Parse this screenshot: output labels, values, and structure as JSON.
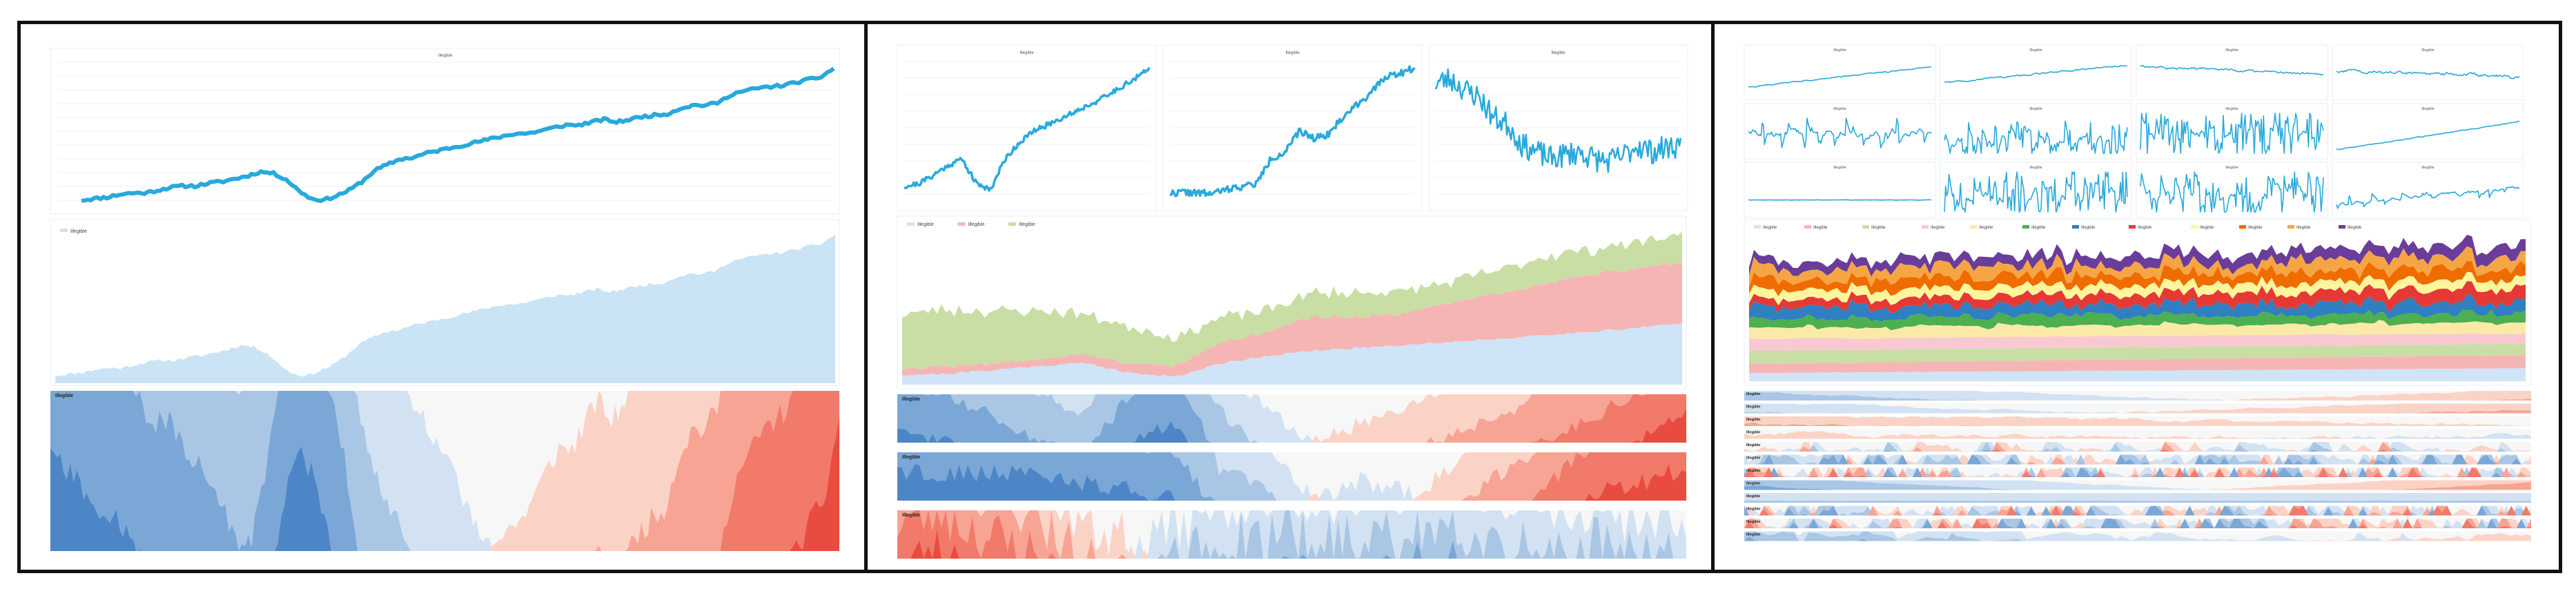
{
  "panel_1": {
    "line_chart": {
      "title": "Illegible"
    },
    "area_legend": [
      "Illegible"
    ],
    "horizon_label": "Illegible"
  },
  "panel_2": {
    "small_multiples": [
      {
        "title": "Illegible"
      },
      {
        "title": "Illegible"
      },
      {
        "title": "Illegible"
      }
    ],
    "legend": [
      "Illegible",
      "Illegible",
      "Illegible"
    ],
    "horizon_labels": [
      "Illegible",
      "Illegible",
      "Illegible"
    ]
  },
  "panel_3": {
    "small_multiples": [
      {
        "title": "Illegible"
      },
      {
        "title": "Illegible"
      },
      {
        "title": "Illegible"
      },
      {
        "title": "Illegible"
      },
      {
        "title": "Illegible"
      },
      {
        "title": "Illegible"
      },
      {
        "title": "Illegible"
      },
      {
        "title": "Illegible"
      },
      {
        "title": "Illegible"
      },
      {
        "title": "Illegible"
      },
      {
        "title": "Illegible"
      },
      {
        "title": "Illegible"
      }
    ],
    "legend": [
      "Illegible",
      "Illegible",
      "Illegible",
      "Illegible",
      "Illegible",
      "Illegible",
      "Illegible",
      "Illegible",
      "Illegible",
      "Illegible",
      "Illegible",
      "Illegible"
    ],
    "horizon_labels": [
      "Illegible",
      "Illegible",
      "Illegible",
      "Illegible",
      "Illegible",
      "Illegible",
      "Illegible",
      "Illegible",
      "Illegible",
      "Illegible",
      "Illegible",
      "Illegible"
    ]
  },
  "colors": {
    "line": "#29a9dc",
    "area_single": "#cae3f5",
    "stack": [
      "#cfe4f6",
      "#f6b5b5",
      "#c8dea4",
      "#f9c9d2",
      "#fbe9a8",
      "#4caf50",
      "#2f7fc1",
      "#e53935",
      "#fff59d",
      "#ef6c00",
      "#f6a545",
      "#6a3d9a"
    ],
    "blues": [
      "#d2e2f2",
      "#a9c6e4",
      "#7aa7d6",
      "#4d86c6",
      "#2f68b0"
    ],
    "reds": [
      "#fbd3c6",
      "#f7a494",
      "#f17a6a",
      "#e84c40",
      "#d62f27"
    ],
    "frame_border": "#111111"
  },
  "chart_data": [
    {
      "type": "line",
      "title": "Illegible",
      "series": [
        {
          "name": "Illegible",
          "values": [
            0.05,
            0.06,
            0.07,
            0.09,
            0.1,
            0.1,
            0.12,
            0.14,
            0.15,
            0.15,
            0.17,
            0.18,
            0.2,
            0.22,
            0.25,
            0.24,
            0.2,
            0.12,
            0.06,
            0.05,
            0.08,
            0.12,
            0.18,
            0.26,
            0.3,
            0.34,
            0.35,
            0.38,
            0.4,
            0.42,
            0.44,
            0.46,
            0.48,
            0.5,
            0.52,
            0.52,
            0.54,
            0.56,
            0.58,
            0.58,
            0.6,
            0.62,
            0.6,
            0.62,
            0.64,
            0.65,
            0.66,
            0.7,
            0.72,
            0.72,
            0.74,
            0.8,
            0.82,
            0.84,
            0.85,
            0.86,
            0.88,
            0.9,
            0.92,
            0.98
          ]
        }
      ],
      "notes": "single increasing series; small multiple, stacked area and horizon renderings of the same data"
    },
    {
      "type": "line",
      "title": "Illegible",
      "series": [
        {
          "name": "Illegible",
          "values": [
            0.1,
            0.12,
            0.18,
            0.25,
            0.3,
            0.12,
            0.08,
            0.3,
            0.42,
            0.5,
            0.55,
            0.6,
            0.65,
            0.7,
            0.75,
            0.82,
            0.88,
            0.95
          ]
        },
        {
          "name": "Illegible",
          "values": [
            0.05,
            0.06,
            0.05,
            0.05,
            0.08,
            0.1,
            0.12,
            0.3,
            0.35,
            0.5,
            0.45,
            0.48,
            0.6,
            0.7,
            0.78,
            0.9,
            0.92,
            0.96
          ]
        },
        {
          "name": "Illegible",
          "values": [
            0.85,
            0.88,
            0.8,
            0.75,
            0.6,
            0.55,
            0.4,
            0.35,
            0.3,
            0.33,
            0.35,
            0.3,
            0.28,
            0.32,
            0.4,
            0.35,
            0.38,
            0.4
          ]
        }
      ],
      "notes": "three series; stacked area below and three horizon charts"
    },
    {
      "type": "area",
      "title": "",
      "series_count": 12,
      "notes": "twelve series shown as small multiples, a stacked streamgraph and twelve horizon strips"
    }
  ]
}
